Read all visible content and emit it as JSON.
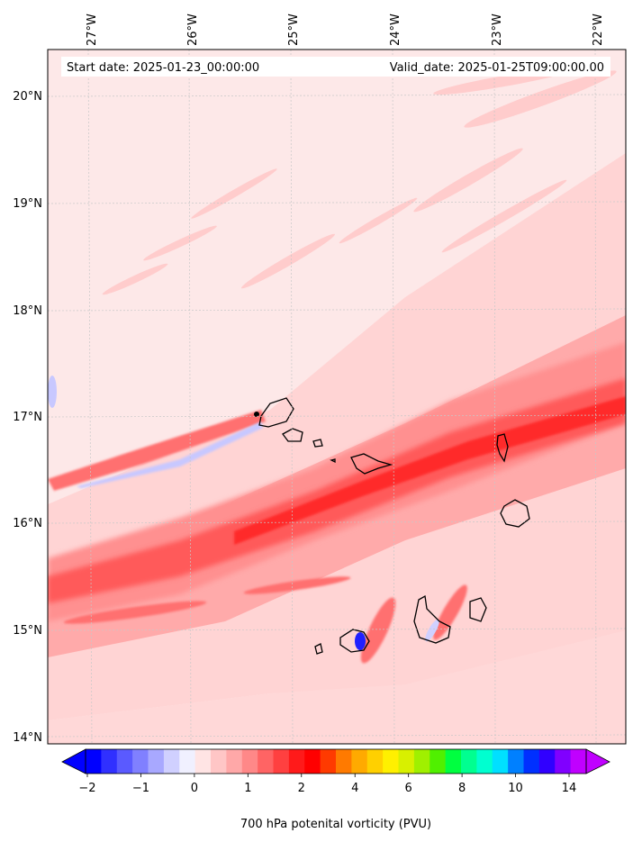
{
  "map": {
    "start_date_label": "Start date: 2025-01-23_00:00:00",
    "valid_date_label": "Valid_date: 2025-01-25T09:00:00.00",
    "lon_labels": [
      "27°W",
      "26°W",
      "25°W",
      "24°W",
      "23°W",
      "22°W"
    ],
    "lat_labels": [
      "20°N",
      "19°N",
      "18°N",
      "17°N",
      "16°N",
      "15°N",
      "14°N"
    ],
    "region": "Cape Verde islands",
    "background_color": "#fde8e8"
  },
  "colorbar": {
    "title": "700 hPa potenital vorticity (PVU)",
    "ticks": [
      "−2",
      "−1",
      "0",
      "1",
      "2",
      "4",
      "6",
      "8",
      "10",
      "14"
    ],
    "colors": [
      "#0000ff",
      "#3030ff",
      "#5a5aff",
      "#8080ff",
      "#a8a8ff",
      "#d0d0ff",
      "#f0f0ff",
      "#ffe4e4",
      "#ffc6c6",
      "#ffa8a8",
      "#ff8888",
      "#ff6464",
      "#ff4040",
      "#ff1a1a",
      "#ff0000",
      "#ff3a00",
      "#ff7a00",
      "#ffaa00",
      "#ffd000",
      "#fff000",
      "#d8f000",
      "#a0f000",
      "#50f000",
      "#00ff40",
      "#00ff90",
      "#00ffd0",
      "#00e0ff",
      "#0080ff",
      "#0030ff",
      "#3000ff",
      "#8000ff",
      "#c000ff"
    ]
  }
}
